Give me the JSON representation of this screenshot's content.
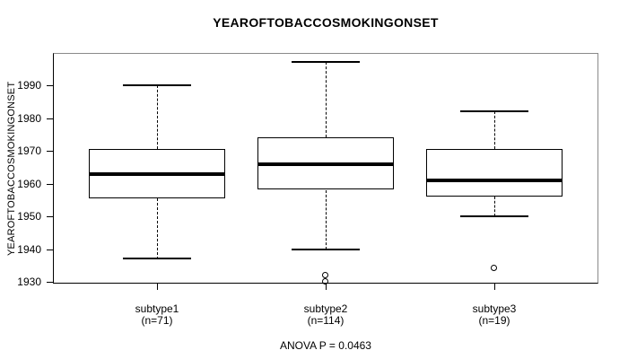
{
  "chart_data": {
    "type": "boxplot",
    "title": "YEAROFTOBACCOSMOKINGONSET",
    "ylabel": "YEAROFTOBACCOSMOKINGONSET",
    "footer_annotation": "ANOVA P = 0.0463",
    "yticks": [
      1930,
      1940,
      1950,
      1960,
      1970,
      1980,
      1990
    ],
    "ylim": [
      1925,
      2000
    ],
    "grid": false,
    "whisker_style": "dashed",
    "groups": [
      {
        "label": "subtype1",
        "sublabel": "(n=71)",
        "n": 71,
        "whisker_low": 1937,
        "q1": 1955.5,
        "median": 1963,
        "q3": 1970.5,
        "whisker_high": 1990,
        "outliers": []
      },
      {
        "label": "subtype2",
        "sublabel": "(n=114)",
        "n": 114,
        "whisker_low": 1940,
        "q1": 1958,
        "median": 1966,
        "q3": 1974,
        "whisker_high": 1997,
        "outliers": [
          1932,
          1930
        ]
      },
      {
        "label": "subtype3",
        "sublabel": "(n=19)",
        "n": 19,
        "whisker_low": 1950,
        "q1": 1956,
        "median": 1961,
        "q3": 1970.5,
        "whisker_high": 1982,
        "outliers": [
          1934
        ]
      }
    ]
  },
  "colors": {
    "line": "#000000",
    "frame": "#8a8a8a",
    "background": "#ffffff",
    "box_fill": "#ffffff"
  }
}
